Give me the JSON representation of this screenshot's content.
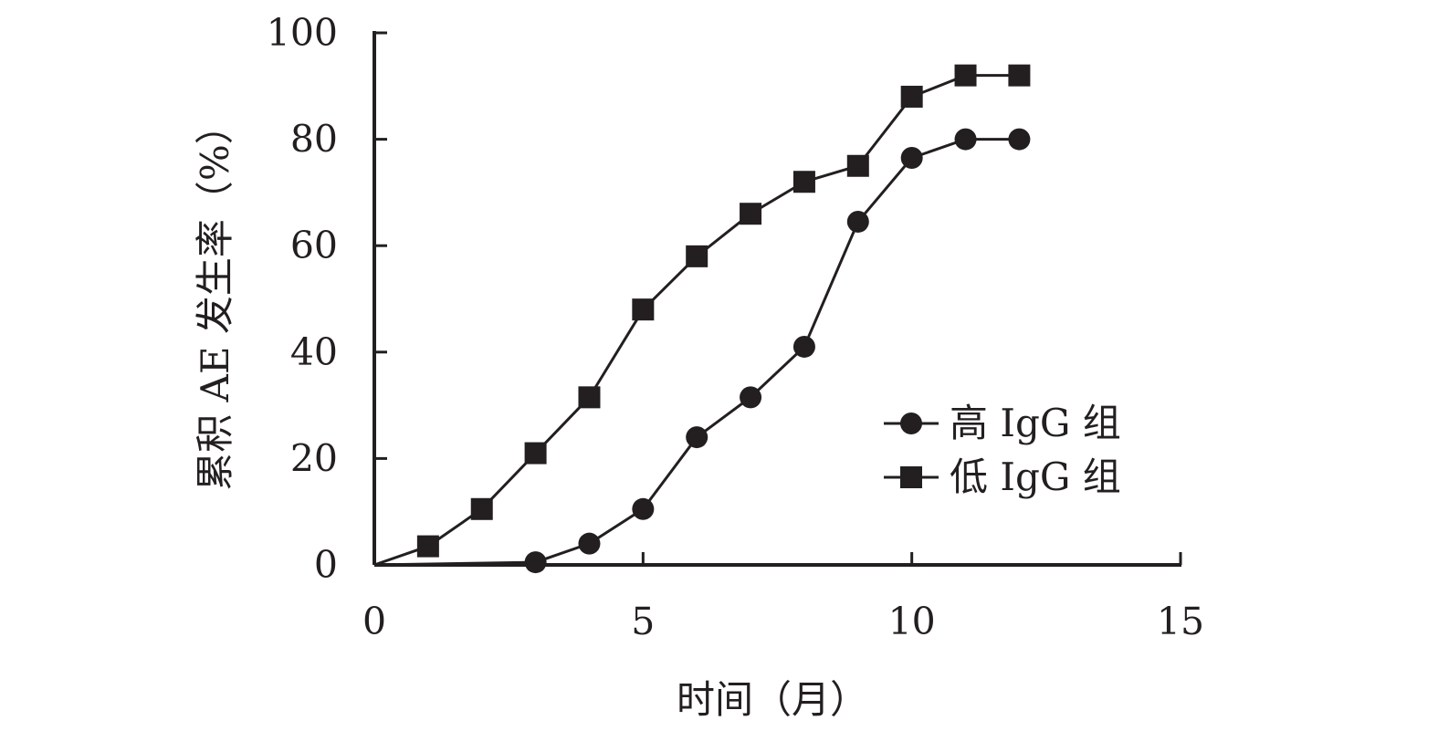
{
  "chart_data": {
    "type": "line",
    "title": "",
    "xlabel": "时间（月）",
    "ylabel": "累积 AE 发生率（%）",
    "xlim": [
      0,
      15
    ],
    "ylim": [
      0,
      100
    ],
    "xticks": [
      "0",
      "5",
      "10",
      "15"
    ],
    "yticks": [
      "0",
      "20",
      "40",
      "60",
      "80",
      "100"
    ],
    "grid": false,
    "legend_position": "right-middle",
    "series": [
      {
        "name": "高 IgG 组",
        "marker": "circle",
        "color": "#231f20",
        "points": [
          {
            "x": 0,
            "y": 0
          },
          {
            "x": 3,
            "y": 0.5
          },
          {
            "x": 4,
            "y": 4
          },
          {
            "x": 5,
            "y": 10.5
          },
          {
            "x": 6,
            "y": 24
          },
          {
            "x": 7,
            "y": 31.5
          },
          {
            "x": 8,
            "y": 41
          },
          {
            "x": 9,
            "y": 64.5
          },
          {
            "x": 10,
            "y": 76.5
          },
          {
            "x": 11,
            "y": 80
          },
          {
            "x": 12,
            "y": 80
          }
        ]
      },
      {
        "name": "低 IgG 组",
        "marker": "square",
        "color": "#231f20",
        "points": [
          {
            "x": 0,
            "y": 0
          },
          {
            "x": 1,
            "y": 3.5
          },
          {
            "x": 2,
            "y": 10.5
          },
          {
            "x": 3,
            "y": 21
          },
          {
            "x": 4,
            "y": 31.5
          },
          {
            "x": 5,
            "y": 48
          },
          {
            "x": 6,
            "y": 58
          },
          {
            "x": 7,
            "y": 66
          },
          {
            "x": 8,
            "y": 72
          },
          {
            "x": 9,
            "y": 75
          },
          {
            "x": 10,
            "y": 88
          },
          {
            "x": 11,
            "y": 92
          },
          {
            "x": 12,
            "y": 92
          }
        ]
      }
    ]
  }
}
